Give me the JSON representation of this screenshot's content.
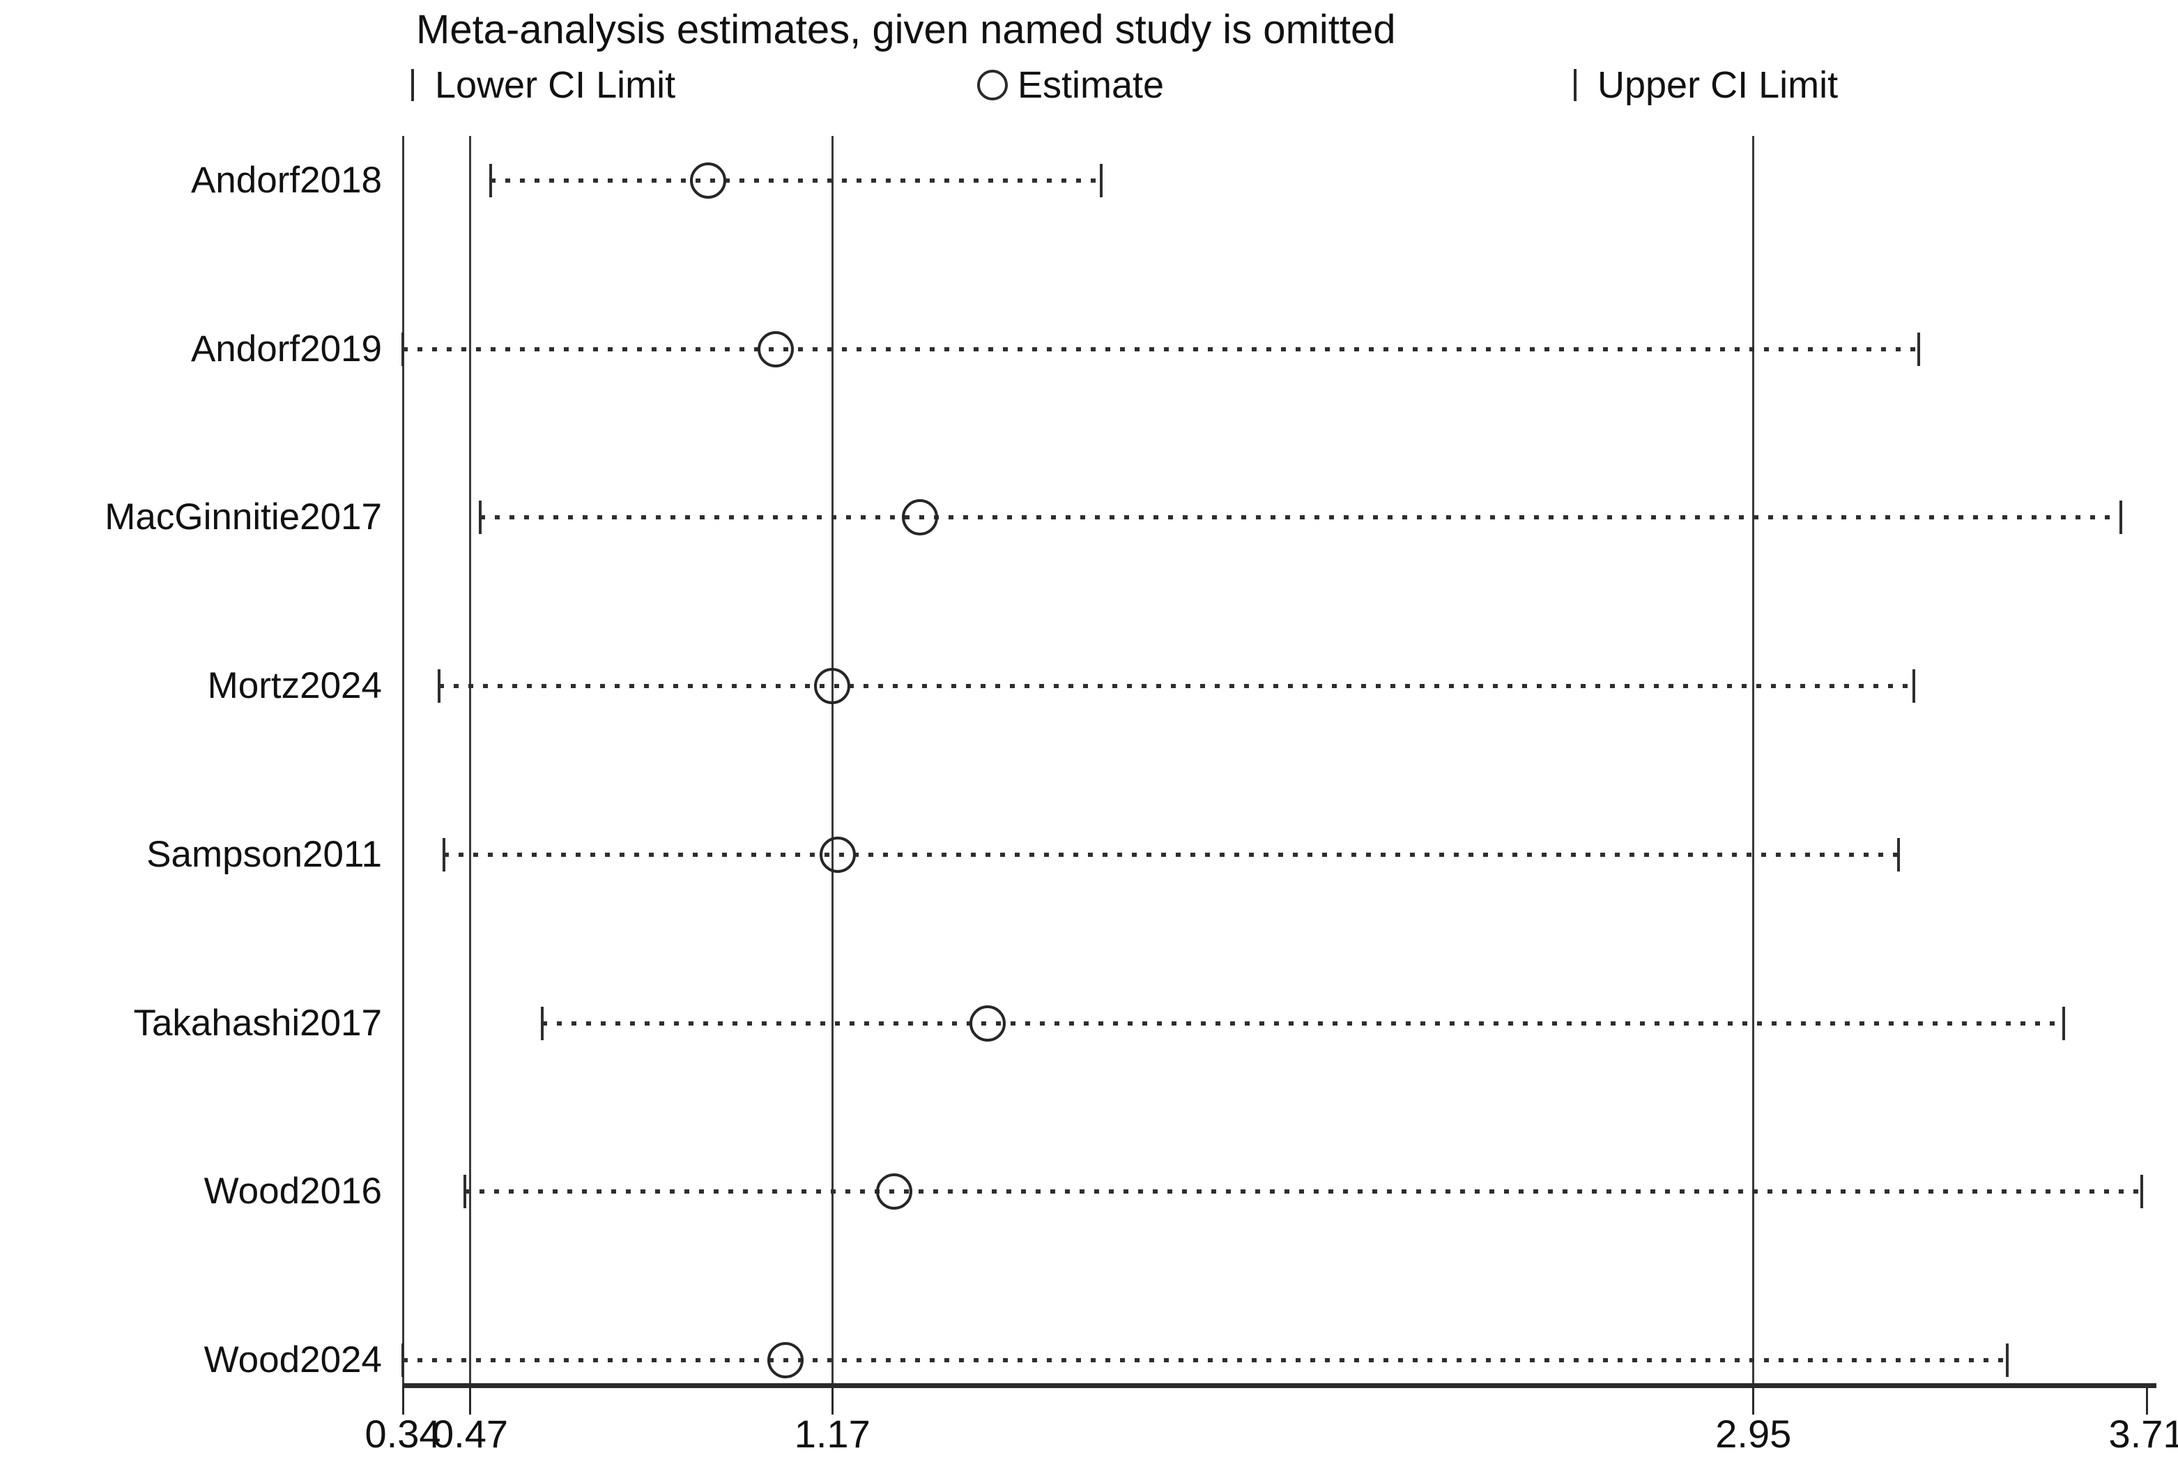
{
  "title": "Meta-analysis estimates, given named study is omitted",
  "legend": {
    "lower_label": "Lower CI Limit",
    "estimate_label": "Estimate",
    "upper_label": "Upper CI Limit"
  },
  "colors": {
    "ink": "#1c1c1c",
    "line": "#3a3a3a",
    "background": "#ffffff"
  },
  "chart_data": {
    "type": "scatter",
    "subtype": "leave-one-out-forest",
    "title": "Meta-analysis estimates, given named study is omitted",
    "xlabel": "",
    "ylabel": "",
    "xlim": [
      0.34,
      3.71
    ],
    "x_ticks": [
      0.34,
      0.47,
      1.17,
      2.95,
      3.71
    ],
    "x_tick_labels": [
      "0.34",
      "0.47",
      "1.17",
      "2.95",
      "3.71"
    ],
    "reference_lines": [
      0.47,
      1.17,
      2.95
    ],
    "grid": false,
    "legend_position": "top",
    "studies": [
      {
        "label": "Andorf2018",
        "lower": 0.51,
        "estimate": 0.93,
        "upper": 1.69
      },
      {
        "label": "Andorf2019",
        "lower": 0.34,
        "estimate": 1.06,
        "upper": 3.27
      },
      {
        "label": "MacGinnitie2017",
        "lower": 0.49,
        "estimate": 1.34,
        "upper": 3.66
      },
      {
        "label": "Mortz2024",
        "lower": 0.41,
        "estimate": 1.17,
        "upper": 3.26
      },
      {
        "label": "Sampson2011",
        "lower": 0.42,
        "estimate": 1.18,
        "upper": 3.23
      },
      {
        "label": "Takahashi2017",
        "lower": 0.61,
        "estimate": 1.47,
        "upper": 3.55
      },
      {
        "label": "Wood2016",
        "lower": 0.46,
        "estimate": 1.29,
        "upper": 3.7
      },
      {
        "label": "Wood2024",
        "lower": 0.34,
        "estimate": 1.08,
        "upper": 3.44
      }
    ]
  }
}
